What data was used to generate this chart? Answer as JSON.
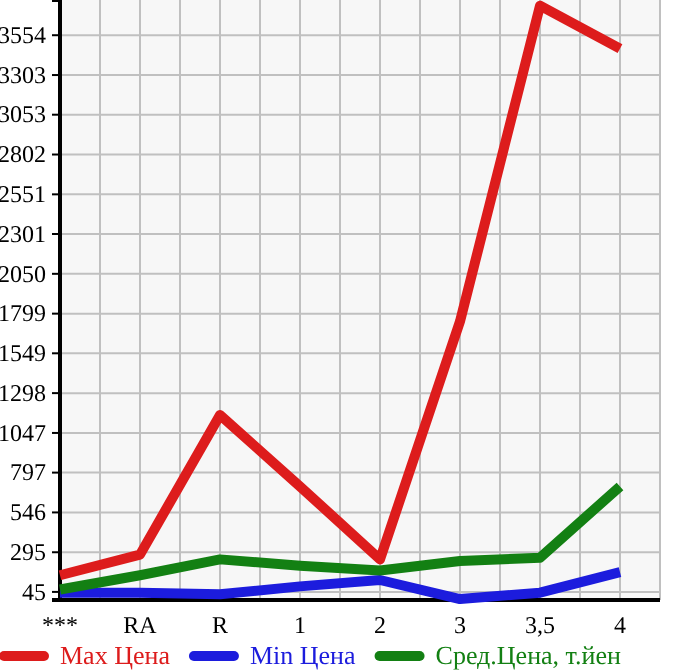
{
  "chart_data": {
    "type": "line",
    "categories": [
      "***",
      "RA",
      "R",
      "1",
      "2",
      "3",
      "3,5",
      "4"
    ],
    "series": [
      {
        "name": "Max Цена",
        "color": "#dd1c1c",
        "values": [
          150,
          280,
          1160,
          710,
          250,
          1750,
          3740,
          3470
        ]
      },
      {
        "name": "Min Цена",
        "color": "#1c1cdd",
        "values": [
          40,
          40,
          30,
          80,
          120,
          0,
          40,
          170
        ]
      },
      {
        "name": "Сред.Цена, т.йен",
        "color": "#138013",
        "values": [
          60,
          150,
          250,
          210,
          180,
          240,
          260,
          710
        ]
      }
    ],
    "ylim": [
      -6,
      3776
    ],
    "yticks": [
      45,
      295,
      546,
      797,
      1047,
      1298,
      1549,
      1799,
      2050,
      2301,
      2551,
      2802,
      3053,
      3303,
      3554
    ],
    "grid": true,
    "legend": "bottom",
    "marker": "none",
    "line_style": "solid"
  }
}
